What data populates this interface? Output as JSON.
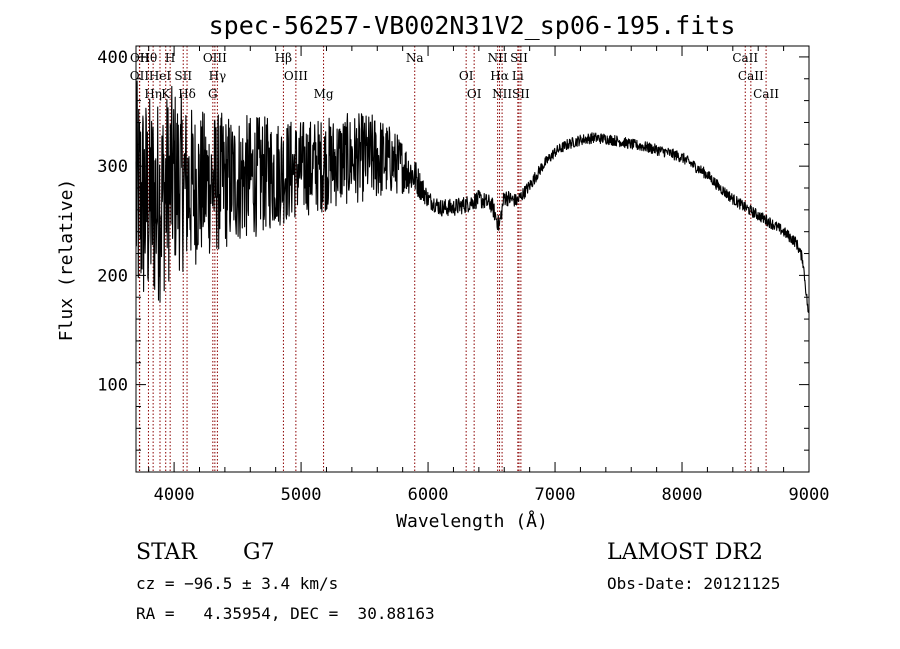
{
  "chart_data": {
    "type": "line",
    "title": "spec-56257-VB002N31V2_sp06-195.fits",
    "xlabel": "Wavelength (Å)",
    "ylabel": "Flux (relative)",
    "xlim": [
      3700,
      9000
    ],
    "ylim": [
      20,
      410
    ],
    "x_ticks": [
      4000,
      5000,
      6000,
      7000,
      8000,
      9000
    ],
    "y_ticks": [
      100,
      200,
      300,
      400
    ],
    "grid": false,
    "line_color": "#000000",
    "marker_color": "#8b0000",
    "spectral_lines": [
      {
        "name": "Hθ",
        "wavelength": 3798
      },
      {
        "name": "OII",
        "wavelength": 3727
      },
      {
        "name": "Hη",
        "wavelength": 3835
      },
      {
        "name": "OII",
        "wavelength": 3729
      },
      {
        "name": "HeI",
        "wavelength": 3889
      },
      {
        "name": "K",
        "wavelength": 3934
      },
      {
        "name": "H",
        "wavelength": 3969
      },
      {
        "name": "SII",
        "wavelength": 4072
      },
      {
        "name": "Hδ",
        "wavelength": 4102
      },
      {
        "name": "OIII",
        "wavelength": 4321
      },
      {
        "name": "Hγ",
        "wavelength": 4341
      },
      {
        "name": "G",
        "wavelength": 4305
      },
      {
        "name": "Hβ",
        "wavelength": 4861
      },
      {
        "name": "OIII",
        "wavelength": 4959
      },
      {
        "name": "Mg",
        "wavelength": 5177
      },
      {
        "name": "Na",
        "wavelength": 5895
      },
      {
        "name": "OI",
        "wavelength": 6300
      },
      {
        "name": "OI",
        "wavelength": 6363
      },
      {
        "name": "NII",
        "wavelength": 6548
      },
      {
        "name": "Hα",
        "wavelength": 6563
      },
      {
        "name": "NII",
        "wavelength": 6583
      },
      {
        "name": "SII",
        "wavelength": 6716
      },
      {
        "name": "Li",
        "wavelength": 6707
      },
      {
        "name": "SII",
        "wavelength": 6731
      },
      {
        "name": "CaII",
        "wavelength": 8498
      },
      {
        "name": "CaII",
        "wavelength": 8542
      },
      {
        "name": "CaII",
        "wavelength": 8662
      }
    ],
    "continuum": {
      "x": [
        3700,
        3800,
        3900,
        4000,
        4100,
        4200,
        4300,
        4400,
        4500,
        4600,
        4700,
        4800,
        4900,
        5000,
        5100,
        5200,
        5300,
        5400,
        5500,
        5600,
        5700,
        5800,
        5900,
        5950,
        6000,
        6100,
        6200,
        6300,
        6400,
        6500,
        6560,
        6600,
        6700,
        6800,
        6900,
        7000,
        7100,
        7200,
        7300,
        7400,
        7500,
        7600,
        7700,
        7800,
        7900,
        8000,
        8100,
        8200,
        8300,
        8400,
        8500,
        8600,
        8700,
        8800,
        8900,
        8950,
        9000
      ],
      "y": [
        270,
        265,
        270,
        290,
        280,
        282,
        284,
        286,
        288,
        290,
        292,
        294,
        296,
        298,
        300,
        302,
        305,
        307,
        308,
        308,
        305,
        300,
        290,
        280,
        270,
        262,
        262,
        265,
        270,
        265,
        245,
        272,
        268,
        282,
        300,
        313,
        320,
        324,
        326,
        325,
        323,
        320,
        318,
        315,
        312,
        308,
        300,
        292,
        280,
        270,
        262,
        255,
        248,
        240,
        230,
        215,
        160
      ]
    },
    "noise_amplitude": {
      "x": [
        3700,
        4200,
        4500,
        5000,
        5600,
        5800,
        6000,
        6600,
        6700,
        7000,
        9000
      ],
      "y": [
        110,
        70,
        60,
        45,
        40,
        25,
        8,
        8,
        6,
        5,
        5
      ]
    }
  },
  "annotations": {
    "object_class": "STAR",
    "subclass": "G7",
    "survey": "LAMOST DR2",
    "redshift": "cz = −96.5 ± 3.4 km/s",
    "obs_date": "Obs-Date: 20121125",
    "coords": "RA =   4.35954, DEC =  30.88163"
  }
}
